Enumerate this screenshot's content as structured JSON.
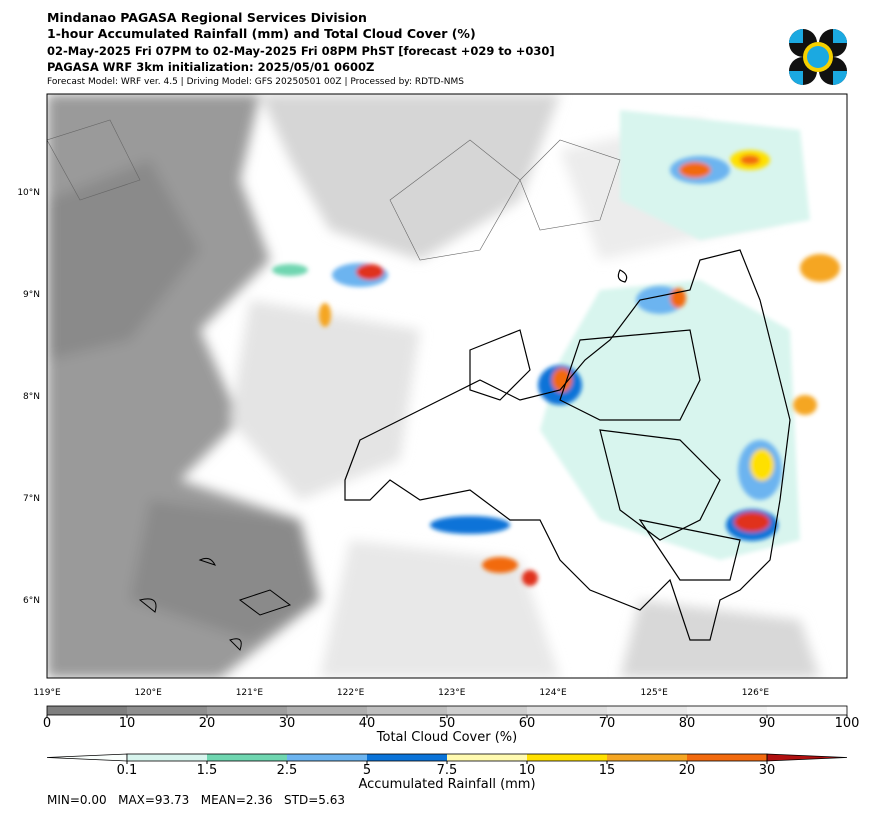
{
  "header": {
    "title": "Mindanao PAGASA Regional Services Division",
    "subtitle": "1-hour Accumulated Rainfall (mm) and Total Cloud Cover (%)",
    "valid_time": "02-May-2025 Fri 07PM to 02-May-2025 Fri 08PM PhST [forecast +029 to +030]",
    "initialization": "PAGASA WRF 3km initialization: 2025/05/01 0600Z",
    "model_info": "Forecast Model: WRF ver. 4.5 | Driving Model: GFS 20250501 00Z | Processed by: RDTD-NMS"
  },
  "map": {
    "lat_labels": [
      "10°N",
      "9°N",
      "8°N",
      "7°N",
      "6°N"
    ],
    "lon_labels": [
      "119°E",
      "120°E",
      "121°E",
      "122°E",
      "123°E",
      "124°E",
      "125°E",
      "126°E"
    ]
  },
  "cloud_colorbar": {
    "label": "Total Cloud Cover (%)",
    "ticks": [
      0,
      10,
      20,
      30,
      40,
      50,
      60,
      70,
      80,
      90,
      100
    ]
  },
  "rain_colorbar": {
    "label": "Accumulated Rainfall (mm)",
    "ticks": [
      "0.1",
      "1.5",
      "2.5",
      "5",
      "7.5",
      "10",
      "15",
      "20",
      "30"
    ]
  },
  "stats": "MIN=0.00   MAX=93.73   MEAN=2.36   STD=5.63"
}
